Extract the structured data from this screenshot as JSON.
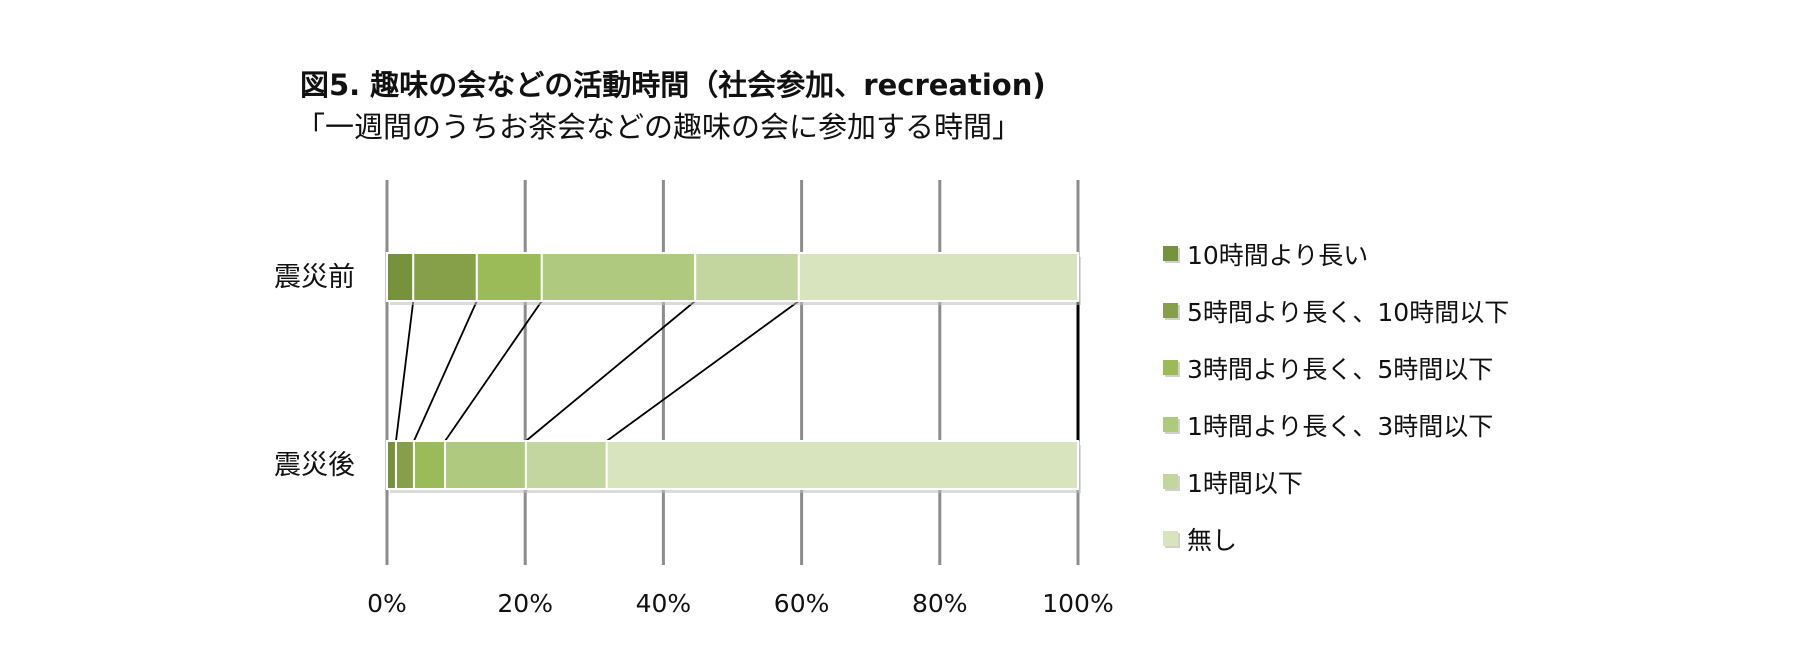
{
  "title": "図5. 趣味の会などの活動時間（社会参加、recreation)",
  "subtitle": "「一週間のうちお茶会などの趣味の会に参加する時間」",
  "chart_data": {
    "type": "bar",
    "orientation": "horizontal",
    "stacked": true,
    "percent_stacked": true,
    "categories": [
      "震災前",
      "震災後"
    ],
    "series": [
      {
        "name": "10時間より長い",
        "color": "#76923c",
        "values": [
          3.8,
          1.3
        ]
      },
      {
        "name": "5時間より長く、10時間以下",
        "color": "#86a049",
        "values": [
          9.2,
          2.6
        ]
      },
      {
        "name": "3時間より長く、5時間以下",
        "color": "#9bbb59",
        "values": [
          9.4,
          4.5
        ]
      },
      {
        "name": "1時間より長く、3時間以下",
        "color": "#afc97e",
        "values": [
          22.2,
          11.7
        ]
      },
      {
        "name": "1時間以下",
        "color": "#c4d6a0",
        "values": [
          15.0,
          11.7
        ]
      },
      {
        "name": "無し",
        "color": "#d7e4bd",
        "values": [
          40.4,
          68.2
        ]
      }
    ],
    "xlim": [
      0,
      100
    ],
    "xticks": [
      "0%",
      "20%",
      "40%",
      "60%",
      "80%",
      "100%"
    ],
    "grid": true,
    "legend_position": "right",
    "series_lines": true
  }
}
